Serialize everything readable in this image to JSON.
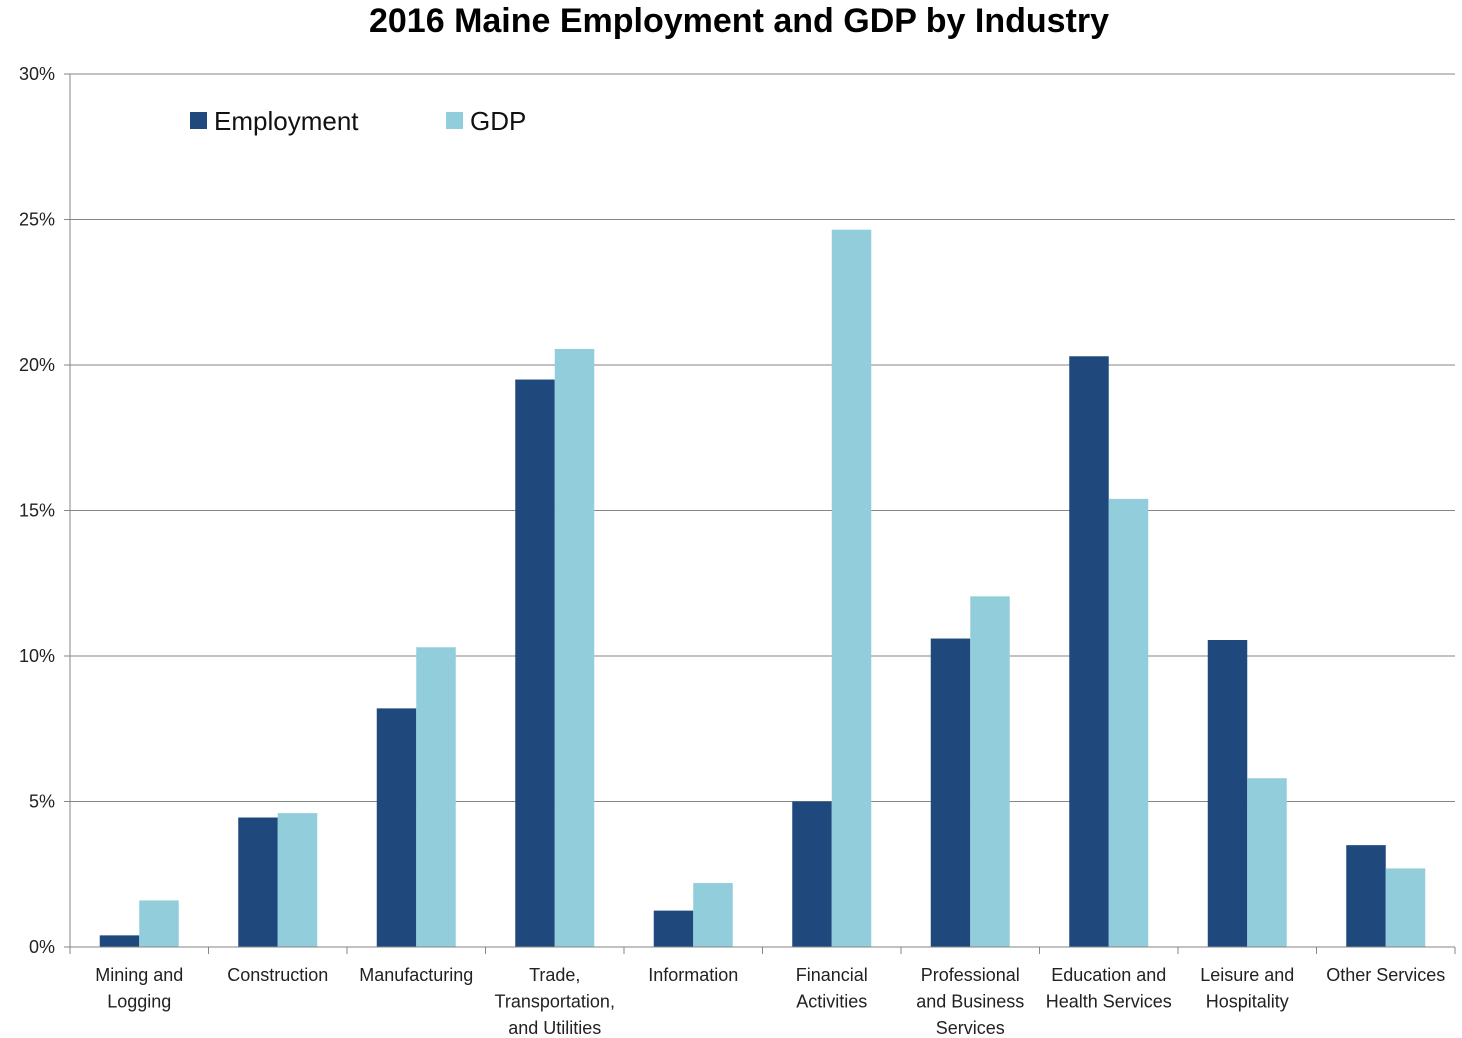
{
  "chart_data": {
    "type": "bar",
    "title": "2016 Maine Employment and GDP by Industry",
    "xlabel": "",
    "ylabel": "",
    "ylim": [
      0,
      30
    ],
    "y_ticks": [
      "0%",
      "5%",
      "10%",
      "15%",
      "20%",
      "25%",
      "30%"
    ],
    "grid": true,
    "legend_position": "top-left",
    "categories": [
      [
        "Mining and",
        "Logging"
      ],
      [
        "Construction"
      ],
      [
        "Manufacturing"
      ],
      [
        "Trade,",
        "Transportation,",
        "and Utilities"
      ],
      [
        "Information"
      ],
      [
        "Financial",
        "Activities"
      ],
      [
        "Professional",
        "and Business",
        "Services"
      ],
      [
        "Education and",
        "Health Services"
      ],
      [
        "Leisure and",
        "Hospitality"
      ],
      [
        "Other Services"
      ]
    ],
    "series": [
      {
        "name": "Employment",
        "color": "#1f497d",
        "values": [
          0.4,
          4.45,
          8.2,
          19.5,
          1.25,
          5.0,
          10.6,
          20.3,
          10.55,
          3.5
        ]
      },
      {
        "name": "GDP",
        "color": "#92cddc",
        "values": [
          1.6,
          4.6,
          10.3,
          20.55,
          2.2,
          24.65,
          12.05,
          15.4,
          5.8,
          2.7
        ]
      }
    ]
  }
}
